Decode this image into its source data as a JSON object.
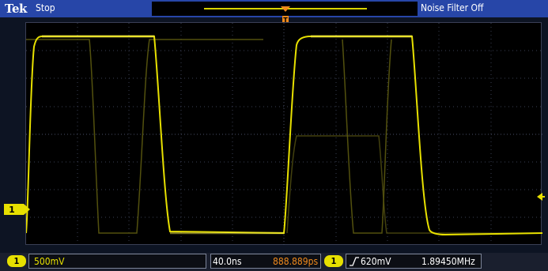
{
  "header": {
    "brand": "Tek",
    "acquisition_state": "Stop",
    "noise_filter": "Noise Filter Off"
  },
  "channel": {
    "number": "1",
    "color": "#e7e000"
  },
  "footer": {
    "channel_badge": "1",
    "vertical_scale": "500mV",
    "horizontal_scale": "40.0ns",
    "trigger_position": "888.889ps",
    "trigger_channel": "1",
    "trigger_level": "620mV",
    "frequency": "1.89450MHz"
  },
  "colors": {
    "trace": "#e7e000",
    "trigger_marker": "#f08a1c",
    "top_bar": "#2746a8",
    "grid": "#3a3f55"
  }
}
